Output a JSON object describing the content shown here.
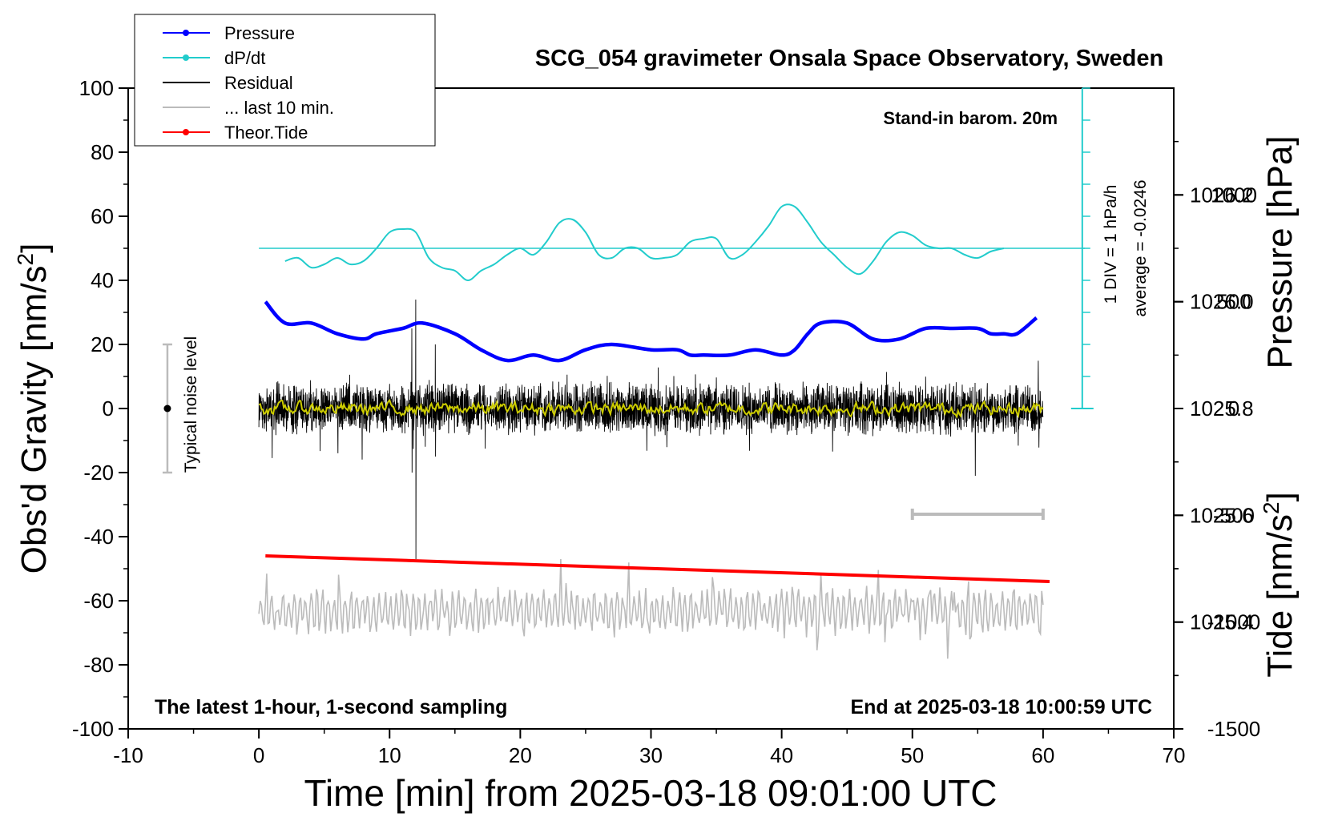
{
  "chart_data": {
    "type": "line",
    "title": "SCG_054 gravimeter Onsala Space Observatory, Sweden",
    "xlabel": "Time [min] from 2025-03-18 09:01:00 UTC",
    "ylabel_left": "Obs'd Gravity [nm/s",
    "ylabel_left_sup": "2",
    "ylabel_left_close": "]",
    "ylabel_right_pressure": "Pressure [hPa]",
    "ylabel_right_tide": "Tide [nm/s",
    "ylabel_right_tide_sup": "2",
    "ylabel_right_tide_close": "]",
    "xlim": [
      -10,
      70
    ],
    "ylim_gravity": [
      -100,
      100
    ],
    "ylim_pressure": [
      1025.2,
      1026.4
    ],
    "ylim_tide": [
      -1500,
      1500
    ],
    "x_ticks": [
      "-10",
      "0",
      "10",
      "20",
      "30",
      "40",
      "50",
      "60",
      "70"
    ],
    "x_tick_values": [
      -10,
      0,
      10,
      20,
      30,
      40,
      50,
      60,
      70
    ],
    "y_ticks_gravity": [
      "100",
      "80",
      "60",
      "40",
      "20",
      "0",
      "-20",
      "-40",
      "-60",
      "-80",
      "-100"
    ],
    "y_tick_values_gravity": [
      100,
      80,
      60,
      40,
      20,
      0,
      -20,
      -40,
      -60,
      -80,
      -100
    ],
    "y_ticks_pressure": [
      "1026.2",
      "1026.0",
      "1025.8",
      "1025.6",
      "1025.4"
    ],
    "y_tick_values_pressure": [
      1026.2,
      1026.0,
      1025.8,
      1025.6,
      1025.4
    ],
    "y_ticks_tide": [
      "1000",
      "500",
      "0",
      "-500",
      "-1000",
      "-1500"
    ],
    "y_tick_values_tide": [
      1000,
      500,
      0,
      -500,
      -1000,
      -1500
    ],
    "legend": [
      {
        "label": "Pressure",
        "color": "#0000ff",
        "marker": true
      },
      {
        "label": "dP/dt",
        "color": "#22cccc",
        "marker": true
      },
      {
        "label": "Residual",
        "color": "#000000",
        "marker": false
      },
      {
        "label": "... last 10 min.",
        "color": "#bbbbbb",
        "marker": false
      },
      {
        "label": "Theor.Tide",
        "color": "#ff0000",
        "marker": true
      }
    ],
    "annotations": {
      "stand_in": "Stand-in barom. 20m",
      "div_label": "1 DIV = 1 hPa/h",
      "average_label": "average = -0.0246",
      "noise_label": "Typical noise level",
      "bottom_left": "The latest 1-hour, 1-second sampling",
      "bottom_right": "End at 2025-03-18 10:00:59 UTC"
    },
    "series": [
      {
        "name": "Pressure",
        "unit": "hPa",
        "color": "#0000ff",
        "x": [
          0.5,
          2,
          4,
          6,
          8,
          9,
          11,
          12.5,
          15,
          17,
          19,
          21,
          23,
          25,
          27,
          30,
          32,
          33,
          34,
          36,
          38,
          40,
          41,
          42,
          43,
          45,
          47,
          49,
          51,
          53,
          55,
          56,
          57,
          58,
          59.5
        ],
        "values": [
          1026.0,
          1025.96,
          1025.96,
          1025.94,
          1025.93,
          1025.94,
          1025.95,
          1025.96,
          1025.94,
          1025.91,
          1025.89,
          1025.9,
          1025.89,
          1025.91,
          1025.92,
          1025.91,
          1025.91,
          1025.9,
          1025.9,
          1025.9,
          1025.91,
          1025.9,
          1025.91,
          1025.94,
          1025.96,
          1025.96,
          1025.93,
          1025.93,
          1025.95,
          1025.95,
          1025.95,
          1025.94,
          1025.94,
          1025.94,
          1025.97
        ]
      },
      {
        "name": "dP/dt",
        "unit": "nm/s2 scale",
        "color": "#22cccc",
        "x": [
          2,
          3,
          4,
          5,
          6,
          7,
          8,
          9,
          10,
          11,
          12,
          13,
          14,
          15,
          16,
          17,
          18,
          19,
          20,
          21,
          22,
          23,
          24,
          25,
          26,
          27,
          28,
          29,
          30,
          31,
          32,
          33,
          34,
          35,
          36,
          37,
          38,
          39,
          40,
          41,
          42,
          43,
          44,
          45,
          46,
          47,
          48,
          49,
          50,
          51,
          52,
          53,
          54,
          55,
          56,
          57
        ],
        "values": [
          46,
          47,
          44,
          45,
          47,
          45,
          46,
          50,
          55,
          56,
          55,
          47,
          44,
          43,
          40,
          43,
          45,
          48,
          50,
          48,
          52,
          58,
          59,
          55,
          48,
          47,
          50,
          50,
          47,
          47,
          48,
          52,
          53,
          53,
          47,
          48,
          52,
          57,
          63,
          63,
          58,
          52,
          48,
          44,
          42,
          46,
          52,
          55,
          54,
          51,
          50,
          50,
          48,
          47,
          49,
          50
        ]
      },
      {
        "name": "Residual",
        "unit": "nm/s2",
        "color": "#000000",
        "x_range": [
          0,
          60
        ],
        "typical_amplitude": 6,
        "spikes": [
          {
            "x": 12.0,
            "min": -47,
            "max": 34
          },
          {
            "x": 11.7,
            "min": -20,
            "max": 25
          },
          {
            "x": 13.5,
            "min": -15,
            "max": 20
          },
          {
            "x": 54.8,
            "min": -21,
            "max": 8
          }
        ]
      },
      {
        "name": "Residual smoothed",
        "unit": "nm/s2",
        "color": "#cccc00",
        "x_range": [
          0,
          60
        ],
        "typical_amplitude": 1.5
      },
      {
        "name": "... last 10 min.",
        "unit": "nm/s2",
        "color": "#bbbbbb",
        "x_range": [
          0,
          60
        ],
        "baseline": -63,
        "typical_amplitude": 6,
        "min": -83,
        "max": -47
      },
      {
        "name": "Theor.Tide",
        "unit": "nm/s2",
        "color": "#ff0000",
        "x": [
          0.5,
          60.5
        ],
        "values": [
          -46,
          -54
        ]
      }
    ],
    "noise_bar": {
      "center": 0,
      "min": -20,
      "max": 20,
      "x": -7
    },
    "window_bar": {
      "x_start": 50,
      "x_end": 60,
      "y": -33
    },
    "div_axis": {
      "x": 63,
      "y_top": 100,
      "y_bottom": 0,
      "minor_step": 10
    }
  }
}
